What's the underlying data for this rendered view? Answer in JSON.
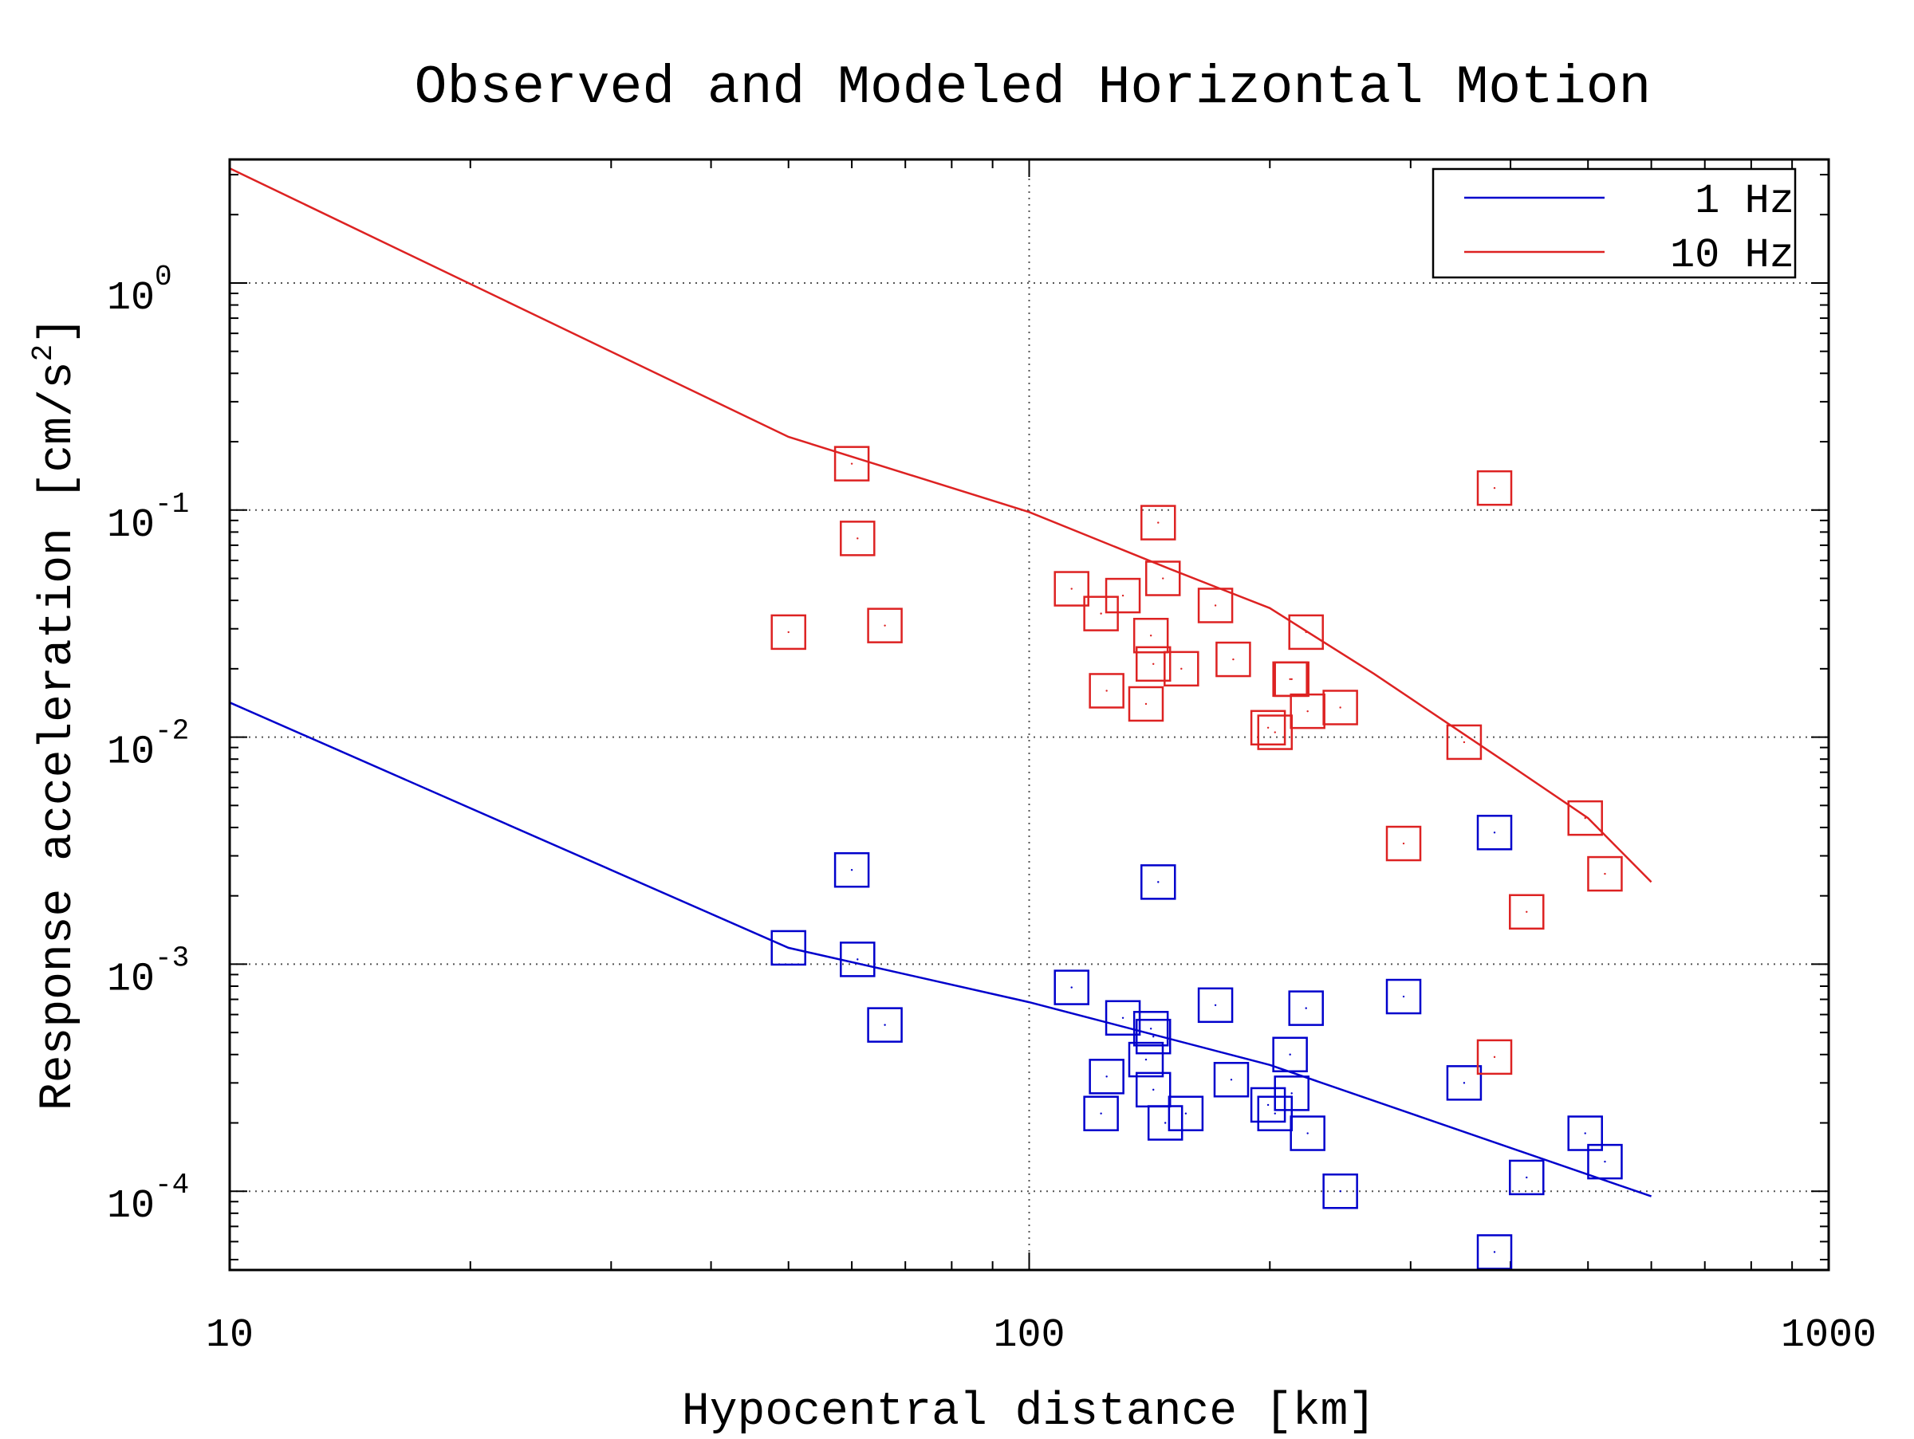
{
  "chart_data": {
    "type": "scatter",
    "title": "Observed and Modeled Horizontal Motion",
    "xlabel": "Hypocentral distance [km]",
    "ylabel": "Response acceleration [cm/s",
    "ylabel_sup": "2",
    "ylabel_close": "]",
    "x_scale": "log",
    "y_scale": "log",
    "xlim": [
      10,
      1000
    ],
    "ylim": [
      4.5e-05,
      3.5
    ],
    "x_ticks": [
      {
        "value": 10,
        "label": "10"
      },
      {
        "value": 100,
        "label": "100"
      },
      {
        "value": 1000,
        "label": "1000"
      }
    ],
    "y_ticks": [
      {
        "value": 0.0001,
        "base": "10",
        "exp": "-4"
      },
      {
        "value": 0.001,
        "base": "10",
        "exp": "-3"
      },
      {
        "value": 0.01,
        "base": "10",
        "exp": "-2"
      },
      {
        "value": 0.1,
        "base": "10",
        "exp": "-1"
      },
      {
        "value": 1,
        "base": "10",
        "exp": "0"
      }
    ],
    "grid": "dotted",
    "legend_position": "top-right",
    "series": [
      {
        "name": "1 Hz",
        "color": "#0000cc",
        "model_line": [
          [
            10,
            0.0142
          ],
          [
            50,
            0.00118
          ],
          [
            100,
            0.00068
          ],
          [
            200,
            0.00036
          ],
          [
            600,
            9.5e-05
          ]
        ],
        "observed": [
          [
            50,
            0.00118
          ],
          [
            60,
            0.0026
          ],
          [
            61,
            0.00105
          ],
          [
            66,
            0.00054
          ],
          [
            113,
            0.00079
          ],
          [
            123,
            0.00022
          ],
          [
            125,
            0.00032
          ],
          [
            131,
            0.00058
          ],
          [
            140,
            0.00038
          ],
          [
            142,
            0.00052
          ],
          [
            143,
            0.00048
          ],
          [
            143,
            0.00028
          ],
          [
            145,
            0.0023
          ],
          [
            148,
            0.0002
          ],
          [
            157,
            0.00022
          ],
          [
            171,
            0.00066
          ],
          [
            179,
            0.00031
          ],
          [
            199,
            0.00024
          ],
          [
            203,
            0.00022
          ],
          [
            212,
            0.0004
          ],
          [
            213,
            0.00027
          ],
          [
            222,
            0.00064
          ],
          [
            223,
            0.00018
          ],
          [
            245,
            0.0001
          ],
          [
            294,
            0.00072
          ],
          [
            350,
            0.0003
          ],
          [
            382,
            0.0038
          ],
          [
            382,
            5.4e-05
          ],
          [
            419,
            0.000115
          ],
          [
            496,
            0.00018
          ],
          [
            525,
            0.000135
          ]
        ]
      },
      {
        "name": "10 Hz",
        "color": "#dd2222",
        "model_line": [
          [
            10,
            3.2
          ],
          [
            50,
            0.21
          ],
          [
            100,
            0.098
          ],
          [
            150,
            0.055
          ],
          [
            200,
            0.037
          ],
          [
            270,
            0.019
          ],
          [
            400,
            0.0075
          ],
          [
            500,
            0.0044
          ],
          [
            600,
            0.0023
          ]
        ],
        "observed": [
          [
            50,
            0.029
          ],
          [
            60,
            0.16
          ],
          [
            61,
            0.075
          ],
          [
            66,
            0.031
          ],
          [
            113,
            0.045
          ],
          [
            123,
            0.035
          ],
          [
            125,
            0.016
          ],
          [
            131,
            0.042
          ],
          [
            140,
            0.014
          ],
          [
            142,
            0.028
          ],
          [
            143,
            0.021
          ],
          [
            145,
            0.088
          ],
          [
            147,
            0.05
          ],
          [
            155,
            0.02
          ],
          [
            171,
            0.038
          ],
          [
            180,
            0.022
          ],
          [
            199,
            0.011
          ],
          [
            203,
            0.0105
          ],
          [
            212,
            0.018
          ],
          [
            213,
            0.018
          ],
          [
            222,
            0.029
          ],
          [
            223,
            0.013
          ],
          [
            245,
            0.0135
          ],
          [
            294,
            0.0034
          ],
          [
            350,
            0.0095
          ],
          [
            382,
            0.125
          ],
          [
            382,
            0.00039
          ],
          [
            419,
            0.0017
          ],
          [
            496,
            0.0044
          ],
          [
            525,
            0.0025
          ]
        ]
      }
    ]
  }
}
